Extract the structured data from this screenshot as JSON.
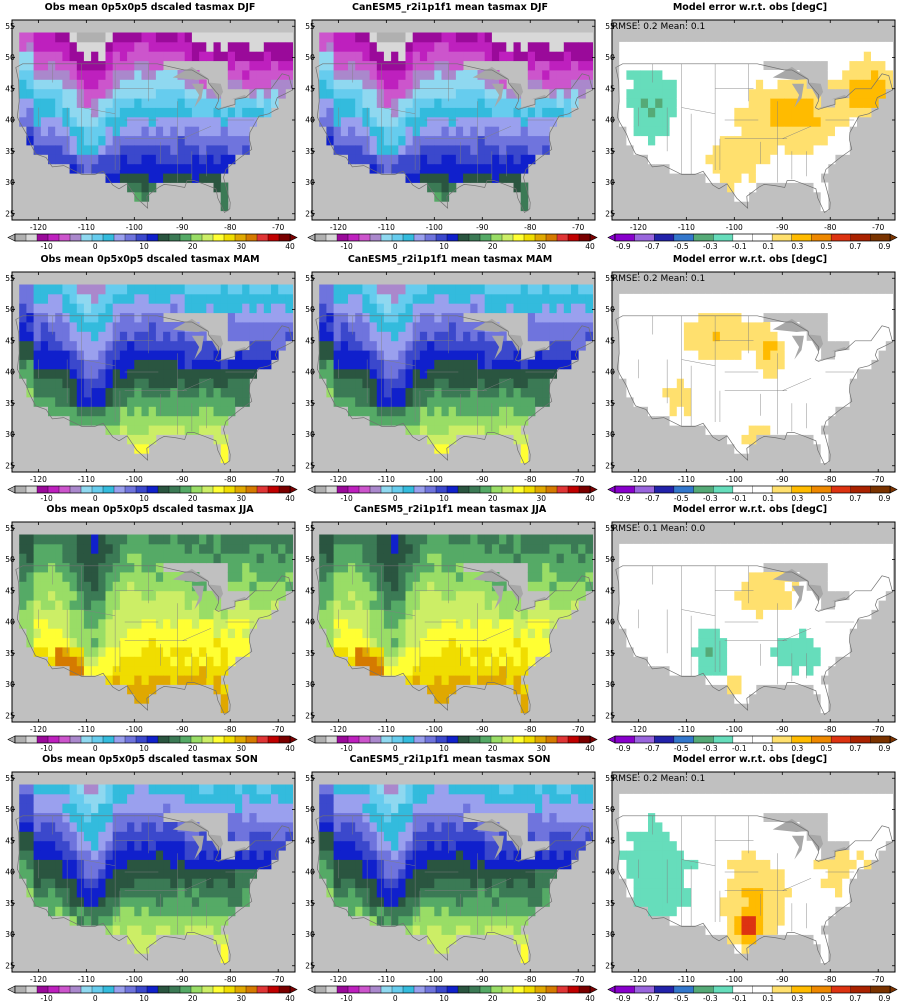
{
  "palettes": {
    "tas": [
      "#b0b0b0",
      "#d8d8d8",
      "#9a0a9a",
      "#be20be",
      "#cc55cc",
      "#aa88cc",
      "#8fd8f0",
      "#66ccee",
      "#33bbdd",
      "#9aa0ee",
      "#6f74dd",
      "#3b48cc",
      "#1020cc",
      "#2a5540",
      "#3b7a55",
      "#55aa66",
      "#99dd66",
      "#ccee66",
      "#ffff33",
      "#f0dd00",
      "#e0a800",
      "#d57a00",
      "#e03535",
      "#c00000",
      "#7a0000"
    ],
    "err": [
      "#8800cc",
      "#9966dd",
      "#2222aa",
      "#3377cc",
      "#55aa77",
      "#66ddbb",
      "#ffffff",
      "#ffffff",
      "#ffe06e",
      "#ffbb00",
      "#ee8800",
      "#dd3311",
      "#aa2200",
      "#7a3300"
    ]
  },
  "colorbars": {
    "tas_labels": [
      "-10",
      "0",
      "10",
      "20",
      "30",
      "40"
    ],
    "err_labels": [
      "-0.9",
      "-0.7",
      "-0.5",
      "-0.3",
      "-0.1",
      "0.1",
      "0.3",
      "0.5",
      "0.7",
      "0.9"
    ]
  },
  "axes": {
    "lon_labels": [
      "-120",
      "-110",
      "-100",
      "-90",
      "-80",
      "-70"
    ],
    "lat_labels": [
      "55",
      "50",
      "45",
      "40",
      "35",
      "30",
      "25"
    ]
  },
  "rows": [
    {
      "season": "DJF",
      "obs_title": "Obs mean 0p5x0p5 dscaled tasmax DJF",
      "model_title": "CanESM5_r2i1p1f1 mean tasmax DJF",
      "err_title": "Model error w.r.t. obs [degC]",
      "err_stats": "RMSE: 0.2  Mean: 0.1"
    },
    {
      "season": "MAM",
      "obs_title": "Obs mean 0p5x0p5 dscaled tasmax MAM",
      "model_title": "CanESM5_r2i1p1f1 mean tasmax MAM",
      "err_title": "Model error w.r.t. obs [degC]",
      "err_stats": "RMSE: 0.2  Mean: 0.1"
    },
    {
      "season": "JJA",
      "obs_title": "Obs mean 0p5x0p5 dscaled tasmax JJA",
      "model_title": "CanESM5_r2i1p1f1 mean tasmax JJA",
      "err_title": "Model error w.r.t. obs [degC]",
      "err_stats": "RMSE: 0.1  Mean: 0.0"
    },
    {
      "season": "SON",
      "obs_title": "Obs mean 0p5x0p5 dscaled tasmax SON",
      "model_title": "CanESM5_r2i1p1f1 mean tasmax SON",
      "err_title": "Model error w.r.t. obs [degC]",
      "err_stats": "RMSE: 0.2  Mean: 0.1"
    }
  ]
}
